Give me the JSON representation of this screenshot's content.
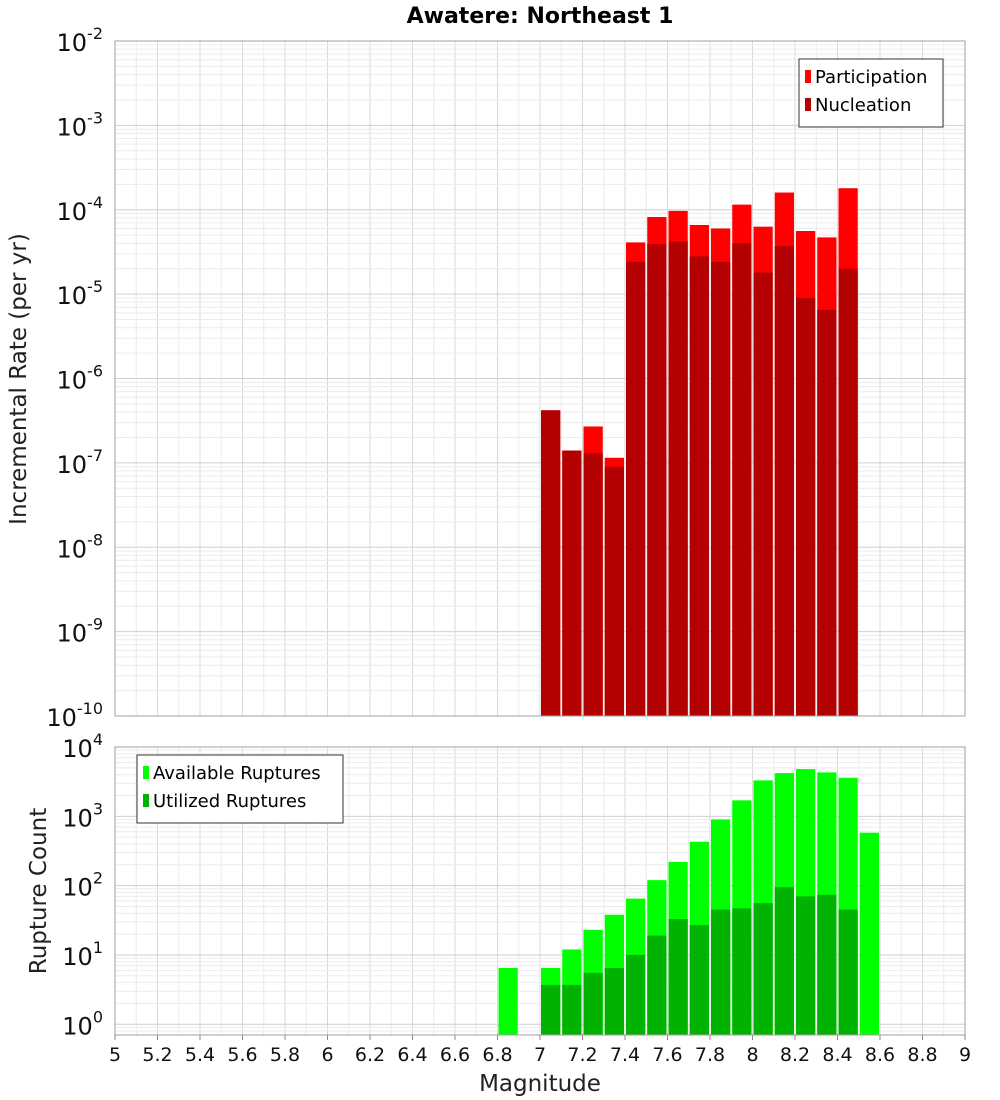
{
  "chart_data": [
    {
      "type": "bar",
      "title": "Awatere: Northeast 1",
      "xlabel": "",
      "ylabel": "Incremental Rate (per yr)",
      "yscale": "log",
      "ylim": [
        1e-10,
        0.01
      ],
      "xlim": [
        5,
        9
      ],
      "grid": true,
      "legend_position": "top-right",
      "overlay": true,
      "bin_width": 0.1,
      "series": [
        {
          "name": "Participation",
          "color": "#ff0000",
          "x": [
            7.05,
            7.15,
            7.25,
            7.35,
            7.45,
            7.55,
            7.65,
            7.75,
            7.85,
            7.95,
            8.05,
            8.15,
            8.25,
            8.35,
            8.45
          ],
          "values": [
            4.2e-07,
            1.4e-07,
            2.7e-07,
            1.15e-07,
            4.1e-05,
            8.2e-05,
            9.7e-05,
            6.6e-05,
            6e-05,
            0.000115,
            6.3e-05,
            0.00016,
            5.6e-05,
            4.7e-05,
            0.00018
          ]
        },
        {
          "name": "Nucleation",
          "color": "#b30000",
          "x": [
            7.05,
            7.15,
            7.25,
            7.35,
            7.45,
            7.55,
            7.65,
            7.75,
            7.85,
            7.95,
            8.05,
            8.15,
            8.25,
            8.35,
            8.45
          ],
          "values": [
            4.2e-07,
            1.4e-07,
            1.3e-07,
            9e-08,
            2.4e-05,
            3.9e-05,
            4.2e-05,
            2.8e-05,
            2.4e-05,
            4e-05,
            1.8e-05,
            3.7e-05,
            9e-06,
            6.5e-06,
            2e-05
          ]
        }
      ]
    },
    {
      "type": "bar",
      "title": "",
      "xlabel": "Magnitude",
      "ylabel": "Rupture Count",
      "yscale": "log",
      "ylim": [
        0.7,
        10000
      ],
      "xlim": [
        5,
        9
      ],
      "x_ticks": [
        "5",
        "5.2",
        "5.4",
        "5.6",
        "5.8",
        "6",
        "6.2",
        "6.4",
        "6.6",
        "6.8",
        "7",
        "7.2",
        "7.4",
        "7.6",
        "7.8",
        "8",
        "8.2",
        "8.4",
        "8.6",
        "8.8",
        "9"
      ],
      "grid": true,
      "legend_position": "top-left",
      "overlay": true,
      "bin_width": 0.1,
      "series": [
        {
          "name": "Available Ruptures",
          "color": "#00ff00",
          "x": [
            6.85,
            7.05,
            7.15,
            7.25,
            7.35,
            7.45,
            7.55,
            7.65,
            7.75,
            7.85,
            7.95,
            8.05,
            8.15,
            8.25,
            8.35,
            8.45,
            8.55
          ],
          "values": [
            6.5,
            6.5,
            12,
            23,
            38,
            65,
            120,
            220,
            430,
            900,
            1700,
            3300,
            4200,
            4800,
            4300,
            3600,
            580
          ]
        },
        {
          "name": "Utilized Ruptures",
          "color": "#00b300",
          "x": [
            7.05,
            7.15,
            7.25,
            7.35,
            7.45,
            7.55,
            7.65,
            7.75,
            7.85,
            7.95,
            8.05,
            8.15,
            8.25,
            8.35,
            8.45
          ],
          "values": [
            3.7,
            3.7,
            5.5,
            6.5,
            10,
            19,
            33,
            27,
            45,
            47,
            56,
            95,
            70,
            74,
            45
          ]
        }
      ]
    }
  ]
}
